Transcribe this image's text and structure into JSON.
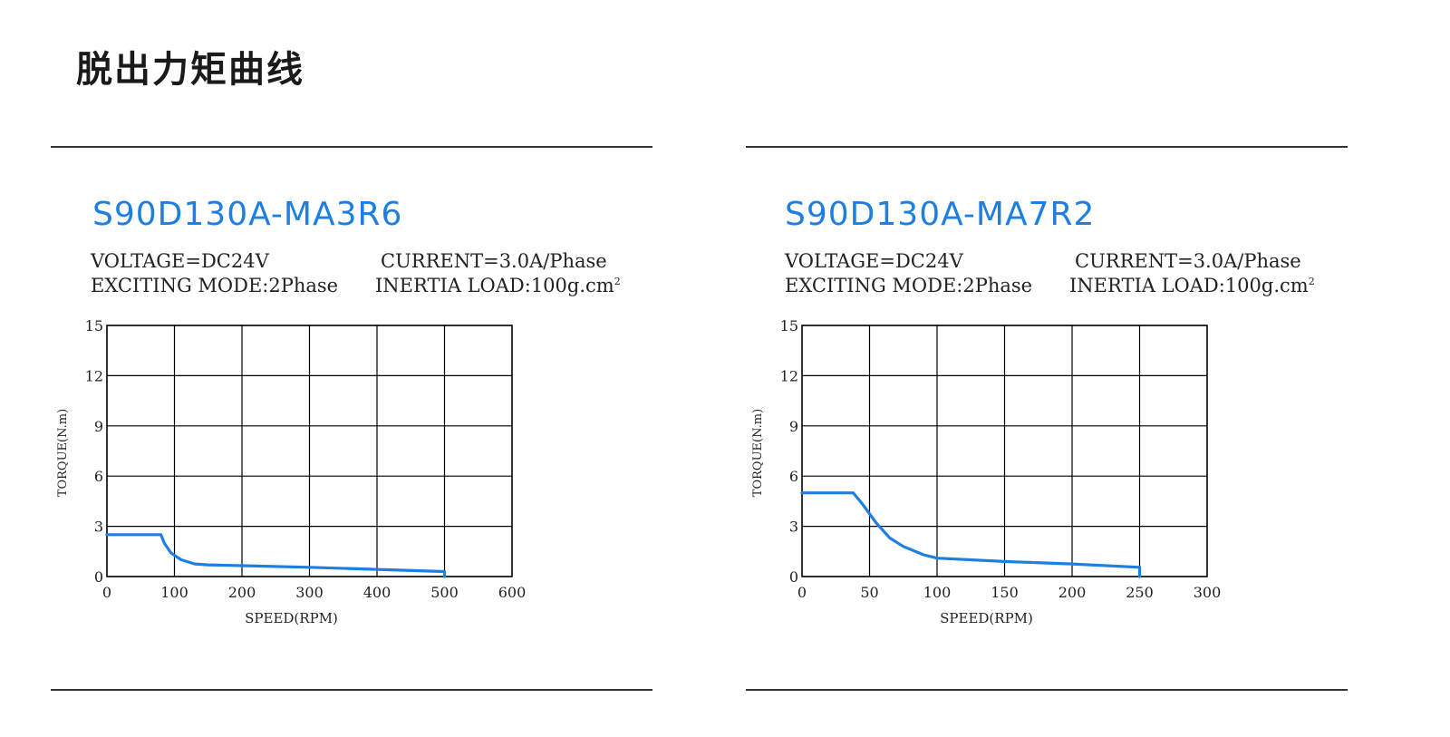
{
  "page": {
    "title": "脱出力矩曲线"
  },
  "colors": {
    "accent": "#1e7fe3",
    "text": "#222222",
    "grid": "#000000",
    "curve": "#1e7fe3"
  },
  "panels": [
    {
      "model": "S90D130A-MA3R6",
      "voltage": "VOLTAGE=DC24V",
      "current": "CURRENT=3.0A/Phase",
      "exciting": "EXCITING MODE:2Phase",
      "inertia": "INERTIA LOAD:100g.cm",
      "inertia_sup": "2"
    },
    {
      "model": "S90D130A-MA7R2",
      "voltage": "VOLTAGE=DC24V",
      "current": "CURRENT=3.0A/Phase",
      "exciting": "EXCITING MODE:2Phase",
      "inertia": "INERTIA LOAD:100g.cm",
      "inertia_sup": "2"
    }
  ],
  "chart_data": [
    {
      "type": "line",
      "title": "S90D130A-MA3R6",
      "xlabel": "SPEED(RPM)",
      "ylabel": "TORQUE(N.m)",
      "xlim": [
        0,
        600
      ],
      "ylim": [
        0,
        15
      ],
      "xticks": [
        0,
        100,
        200,
        300,
        400,
        500,
        600
      ],
      "yticks": [
        0,
        3,
        6,
        9,
        12,
        15
      ],
      "grid": true,
      "series": [
        {
          "x": [
            0,
            80,
            85,
            95,
            110,
            130,
            150,
            200,
            300,
            400,
            500,
            500
          ],
          "y": [
            2.5,
            2.5,
            2.0,
            1.4,
            1.0,
            0.75,
            0.7,
            0.65,
            0.55,
            0.43,
            0.3,
            0
          ]
        }
      ]
    },
    {
      "type": "line",
      "title": "S90D130A-MA7R2",
      "xlabel": "SPEED(RPM)",
      "ylabel": "TORQUE(N.m)",
      "xlim": [
        0,
        300
      ],
      "ylim": [
        0,
        15
      ],
      "xticks": [
        0,
        50,
        100,
        150,
        200,
        250,
        300
      ],
      "yticks": [
        0,
        3,
        6,
        9,
        12,
        15
      ],
      "grid": true,
      "series": [
        {
          "x": [
            0,
            38,
            45,
            55,
            65,
            75,
            90,
            100,
            150,
            200,
            250,
            250
          ],
          "y": [
            5.0,
            5.0,
            4.3,
            3.2,
            2.3,
            1.8,
            1.3,
            1.1,
            0.9,
            0.75,
            0.55,
            0
          ]
        }
      ]
    }
  ]
}
